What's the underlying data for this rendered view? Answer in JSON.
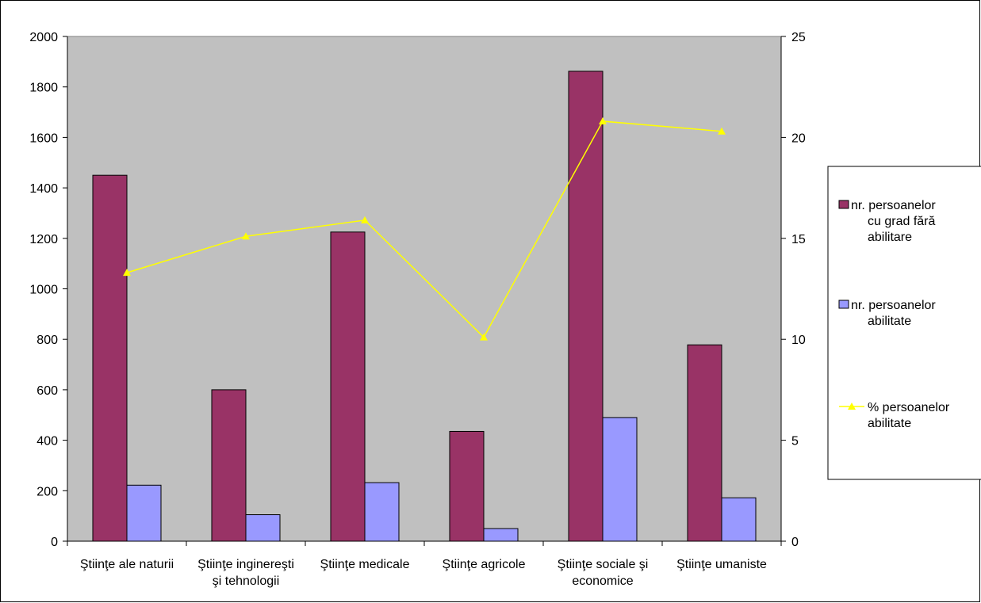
{
  "chart_data": {
    "type": "bar",
    "categories": [
      [
        "Ştiinţe ale naturii"
      ],
      [
        "Ştiinţe inginereşti",
        "şi tehnologii"
      ],
      [
        "Ştiinţe medicale"
      ],
      [
        "Ştiinţe agricole"
      ],
      [
        "Ştiinţe sociale şi",
        "economice"
      ],
      [
        "Ştiinţe umaniste"
      ]
    ],
    "series": [
      {
        "name": "nr. persoanelor cu grad fără abilitare",
        "type": "bar",
        "axis": "left",
        "color": "#993366",
        "legend_lines": [
          "nr. persoanelor",
          "cu grad fără",
          "abilitare"
        ],
        "values": [
          1450,
          600,
          1225,
          435,
          1862,
          778
        ]
      },
      {
        "name": "nr. persoanelor abilitate",
        "type": "bar",
        "axis": "left",
        "color": "#9999ff",
        "legend_lines": [
          "nr. persoanelor",
          "abilitate"
        ],
        "values": [
          222,
          105,
          232,
          50,
          490,
          172
        ]
      },
      {
        "name": "% persoanelor abilitate",
        "type": "line",
        "axis": "right",
        "color": "#ffff00",
        "marker": "triangle",
        "legend_lines": [
          "% persoanelor",
          "abilitate"
        ],
        "values": [
          13.3,
          15.1,
          15.9,
          10.1,
          20.8,
          20.3
        ]
      }
    ],
    "y_left": {
      "min": 0,
      "max": 2000,
      "ticks": [
        0,
        200,
        400,
        600,
        800,
        1000,
        1200,
        1400,
        1600,
        1800,
        2000
      ]
    },
    "y_right": {
      "min": 0,
      "max": 25,
      "ticks": [
        0,
        5,
        10,
        15,
        20,
        25
      ]
    },
    "plot_background": "#c0c0c0",
    "grid": false,
    "legend_position": "right"
  }
}
